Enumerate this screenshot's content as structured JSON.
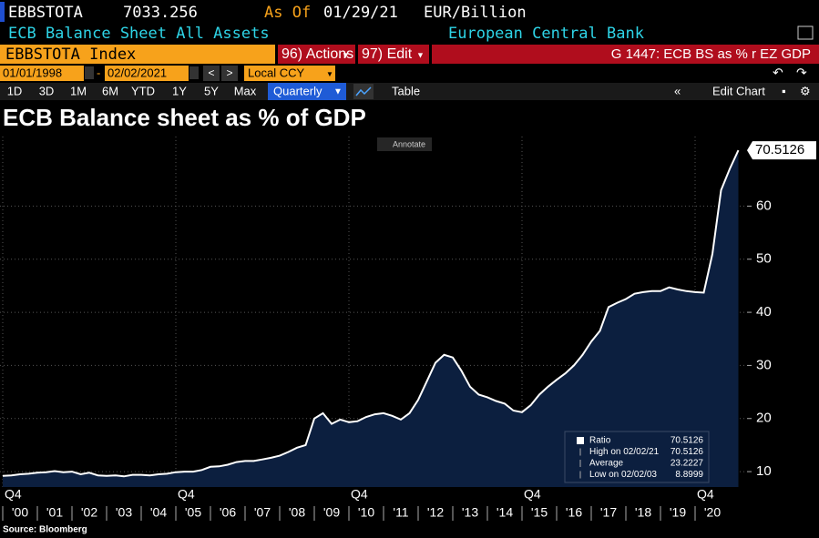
{
  "header": {
    "ticker": "EBBSTOTA",
    "last": "7033.256",
    "as_of_label": "As Of",
    "as_of_date": "01/29/21",
    "unit": "EUR/Billion",
    "description": "ECB Balance Sheet All Assets",
    "source_name": "European Central Bank"
  },
  "command_bar": {
    "security": "EBBSTOTA Index",
    "actions": "96) Actions",
    "edit": "97) Edit",
    "chart_id": "G 1447: ECB BS as % r EZ GDP"
  },
  "date_bar": {
    "start": "01/01/1998",
    "end": "02/02/2021",
    "currency": "Local CCY"
  },
  "toolbar": {
    "ranges": [
      "1D",
      "3D",
      "1M",
      "6M",
      "YTD",
      "1Y",
      "5Y",
      "Max"
    ],
    "frequency": "Quarterly",
    "table": "Table",
    "edit_chart": "Edit Chart",
    "annotate": "Annotate"
  },
  "chart_data": {
    "type": "area",
    "title": "ECB Balance sheet as % of GDP",
    "source": "Source: Bloomberg",
    "color": "#ffffff",
    "fill": "#0c1f3f",
    "values": [
      9.2,
      9.3,
      9.5,
      9.6,
      9.8,
      9.9,
      10.1,
      9.9,
      10,
      9.5,
      9.8,
      9.3,
      9.2,
      9.3,
      9.1,
      9.4,
      9.4,
      9.3,
      9.5,
      9.6,
      9.9,
      10,
      10,
      10.3,
      10.9,
      11,
      11.3,
      11.8,
      12,
      12,
      12.3,
      12.6,
      13,
      13.7,
      14.5,
      15,
      20,
      21,
      19,
      19.8,
      19.3,
      19.5,
      20.3,
      20.8,
      21,
      20.5,
      19.8,
      21,
      23.5,
      27,
      30.5,
      32,
      31.5,
      29,
      26,
      24.5,
      24,
      23.3,
      22.8,
      21.5,
      21.2,
      22.5,
      24.5,
      26,
      27.3,
      28.5,
      30,
      32,
      34.5,
      36.5,
      41,
      41.8,
      42.5,
      43.5,
      43.8,
      44,
      44,
      44.7,
      44.3,
      44,
      43.8,
      43.7,
      51,
      63,
      67,
      70.5126
    ],
    "last_value_label": "70.5126",
    "year_labels": [
      "'00",
      "'01",
      "'02",
      "'03",
      "'04",
      "'05",
      "'06",
      "'07",
      "'08",
      "'09",
      "'10",
      "'11",
      "'12",
      "'13",
      "'14",
      "'15",
      "'16",
      "'17",
      "'18",
      "'19",
      "'20"
    ],
    "quarter_labels": [
      "Q4",
      "Q4",
      "Q4",
      "Q4",
      "Q4"
    ],
    "ylim": [
      7.1,
      73.1
    ],
    "yticks": [
      10,
      20,
      30,
      40,
      50,
      60
    ],
    "grid": true,
    "legend": {
      "rows": [
        {
          "label": "Ratio",
          "value": 70.5126
        },
        {
          "label": "High on 02/02/21",
          "value": 70.5126
        },
        {
          "label": "Average",
          "value": 23.2227
        },
        {
          "label": "Low on 02/02/03",
          "value": 8.8999
        }
      ]
    }
  }
}
